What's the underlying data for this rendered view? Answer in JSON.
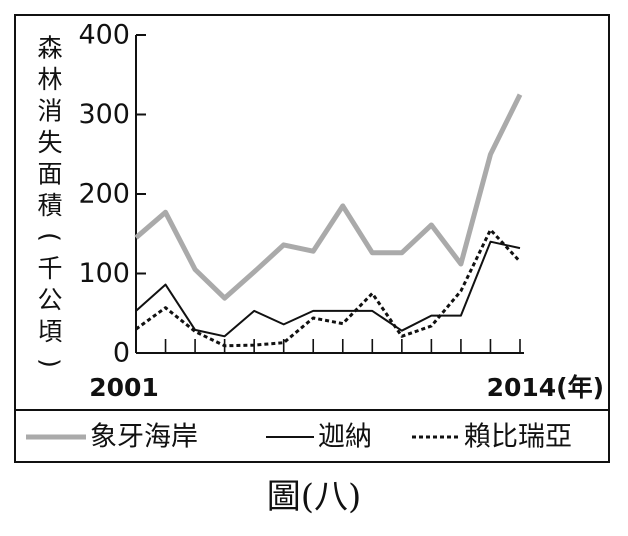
{
  "chart_data": {
    "type": "line",
    "title": "",
    "caption": "圖(八)",
    "ylabel": "森林消失面積(千公頃)",
    "x_axis_start_label": "2001",
    "x_axis_end_label": "2014(年)",
    "x": [
      2001,
      2002,
      2003,
      2004,
      2005,
      2006,
      2007,
      2008,
      2009,
      2010,
      2011,
      2012,
      2013,
      2014
    ],
    "ylim": [
      0,
      400
    ],
    "yticks": [
      "0",
      "100",
      "200",
      "300",
      "400"
    ],
    "grid": false,
    "legend_position": "bottom",
    "series": [
      {
        "name": "象牙海岸",
        "color": "#aaaaaa",
        "style": "solid-thick",
        "values": [
          145,
          177,
          105,
          69,
          102,
          136,
          128,
          185,
          126,
          126,
          161,
          112,
          250,
          325
        ]
      },
      {
        "name": "迦納",
        "color": "#111111",
        "style": "solid",
        "values": [
          53,
          86,
          29,
          21,
          53,
          36,
          53,
          53,
          53,
          28,
          47,
          47,
          140,
          132
        ]
      },
      {
        "name": "賴比瑞亞",
        "color": "#111111",
        "style": "dotted",
        "values": [
          30,
          57,
          27,
          9,
          10,
          13,
          44,
          37,
          75,
          21,
          34,
          78,
          155,
          115
        ]
      }
    ]
  }
}
